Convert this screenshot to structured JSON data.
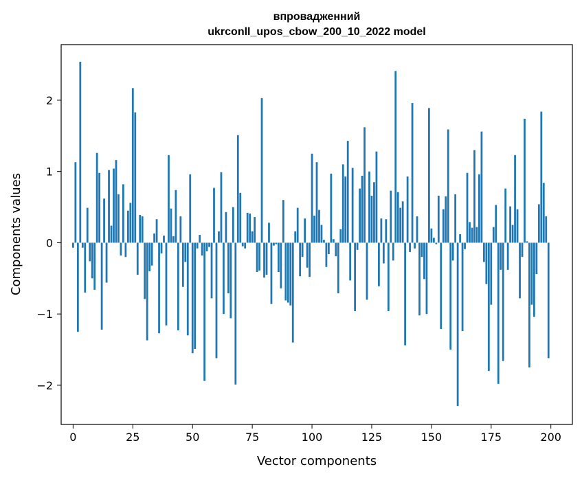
{
  "chart_data": {
    "type": "bar",
    "title": "впровадженний",
    "subtitle": "ukrconll_upos_cbow_200_10_2022 model",
    "xlabel": "Vector components",
    "ylabel": "Components values",
    "xlim": [
      -5,
      209
    ],
    "ylim": [
      -2.55,
      2.78
    ],
    "xticks": [
      0,
      25,
      50,
      75,
      100,
      125,
      150,
      175,
      200
    ],
    "yticks": [
      -2,
      -1,
      0,
      1,
      2
    ],
    "ytick_labels": [
      "−2",
      "−1",
      "0",
      "1",
      "2"
    ],
    "grid": false,
    "bar_color": "#1f77b4",
    "values": [
      -0.07,
      1.13,
      -1.25,
      2.54,
      -0.07,
      -0.7,
      0.49,
      -0.26,
      -0.5,
      -0.66,
      1.26,
      0.98,
      -1.22,
      0.62,
      -0.56,
      1.02,
      0.24,
      1.04,
      1.16,
      0.68,
      -0.18,
      0.82,
      -0.2,
      0.45,
      0.56,
      2.17,
      1.83,
      -0.45,
      0.39,
      0.37,
      -0.79,
      -1.37,
      -0.4,
      -0.32,
      0.13,
      0.33,
      -1.27,
      -0.15,
      0.1,
      -1.16,
      1.23,
      0.48,
      0.09,
      0.74,
      -1.23,
      0.37,
      -0.62,
      -0.27,
      -1.3,
      0.96,
      -1.55,
      -1.49,
      -0.08,
      0.11,
      -0.18,
      -1.94,
      -0.12,
      -0.06,
      -0.78,
      0.77,
      -1.62,
      0.16,
      0.99,
      -1.0,
      0.43,
      -0.71,
      -1.06,
      0.5,
      -1.99,
      1.51,
      0.7,
      -0.05,
      -0.08,
      0.42,
      0.41,
      0.16,
      0.36,
      -0.41,
      -0.39,
      2.03,
      -0.49,
      -0.45,
      0.28,
      -0.86,
      -0.04,
      -0.02,
      -0.41,
      -0.64,
      0.6,
      -0.81,
      -0.84,
      -0.88,
      -1.4,
      0.16,
      0.49,
      -0.47,
      -0.2,
      0.34,
      -0.35,
      -0.48,
      1.25,
      0.38,
      1.13,
      0.46,
      0.25,
      0.04,
      -0.34,
      -0.16,
      0.97,
      0.05,
      -0.19,
      -0.71,
      0.19,
      1.1,
      0.93,
      1.43,
      -0.53,
      1.05,
      -0.96,
      -0.1,
      0.76,
      0.94,
      1.62,
      -0.8,
      1.0,
      0.66,
      0.85,
      1.28,
      -0.61,
      0.34,
      -0.29,
      0.33,
      -0.96,
      0.73,
      -0.25,
      2.41,
      0.71,
      0.49,
      0.58,
      -1.44,
      0.93,
      -0.13,
      1.96,
      -0.08,
      0.37,
      -1.02,
      -0.2,
      -0.51,
      -1.0,
      1.89,
      0.2,
      0.07,
      -0.02,
      0.66,
      -1.21,
      0.47,
      0.65,
      1.59,
      -1.5,
      -0.25,
      0.68,
      -2.29,
      0.12,
      -1.24,
      -0.09,
      0.98,
      0.29,
      0.21,
      1.3,
      0.22,
      0.96,
      1.56,
      -0.27,
      -0.58,
      -1.8,
      -0.87,
      0.22,
      0.53,
      -1.98,
      -0.38,
      -1.66,
      0.76,
      -0.38,
      0.51,
      0.25,
      1.23,
      0.47,
      -0.78,
      -0.2,
      1.74,
      0.02,
      -1.75,
      -0.87,
      -1.04,
      -0.44,
      0.54,
      1.84,
      0.84,
      0.37,
      -1.62
    ]
  }
}
